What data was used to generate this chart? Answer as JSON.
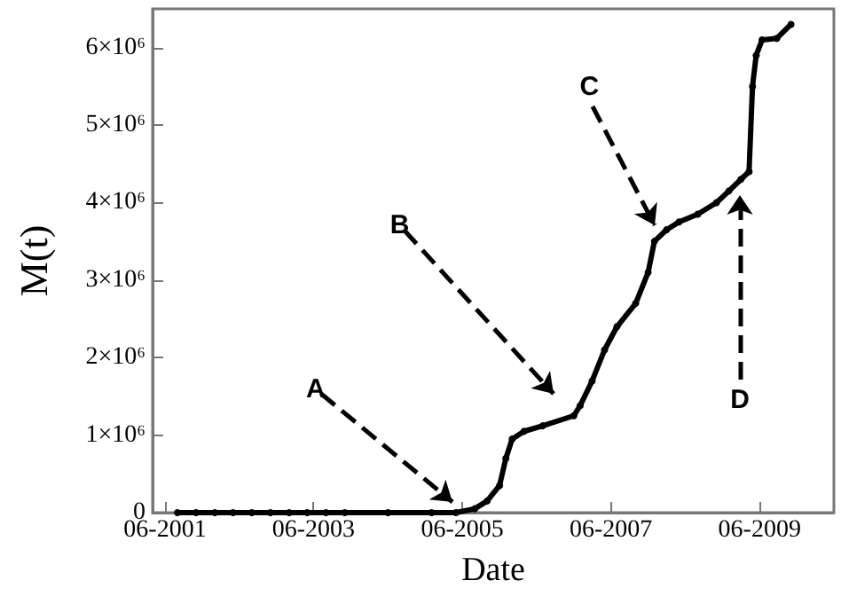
{
  "chart_data": {
    "type": "line",
    "xlabel": "Date",
    "ylabel": "M(t)",
    "x": [
      "2001-08",
      "2001-11",
      "2002-02",
      "2002-05",
      "2002-08",
      "2002-11",
      "2003-02",
      "2003-05",
      "2003-08",
      "2003-11",
      "2004-06",
      "2005-01",
      "2005-05",
      "2005-08",
      "2005-10",
      "2005-12",
      "2006-01",
      "2006-02",
      "2006-04",
      "2006-07",
      "2006-12",
      "2007-01",
      "2007-03",
      "2007-05",
      "2007-07",
      "2007-10",
      "2007-12",
      "2008-01",
      "2008-03",
      "2008-05",
      "2008-08",
      "2008-11",
      "2009-01",
      "2009-03",
      "2009-04-10",
      "2009-04-27",
      "2009-05-15",
      "2009-06-13",
      "2009-08-25",
      "2009-11-02"
    ],
    "series": [
      {
        "color": "#000000",
        "values": [
          0,
          0,
          0,
          0,
          0,
          0,
          0,
          0,
          0,
          0,
          0,
          0,
          0,
          50000,
          150000,
          350000,
          700000,
          950000,
          1050000,
          1120000,
          1250000,
          1380000,
          1700000,
          2100000,
          2400000,
          2700000,
          3100000,
          3500000,
          3650000,
          3750000,
          3850000,
          4000000,
          4150000,
          4300000,
          4400000,
          5500000,
          5900000,
          6100000,
          6120000,
          6300000
        ]
      }
    ],
    "xlim": [
      "2001-04",
      "2010-06"
    ],
    "xticks": [
      {
        "value": "2001-06",
        "label": "06-2001"
      },
      {
        "value": "2003-06",
        "label": "06-2003"
      },
      {
        "value": "2005-06",
        "label": "06-2005"
      },
      {
        "value": "2007-06",
        "label": "06-2007"
      },
      {
        "value": "2009-06",
        "label": "06-2009"
      }
    ],
    "ylim": [
      0,
      6500000
    ],
    "yticks": [
      0,
      {
        "value": 1000000,
        "label": "1×10⁶"
      },
      {
        "value": 2000000,
        "label": "2×10⁶"
      },
      {
        "value": 3000000,
        "label": "3×10⁶"
      },
      {
        "value": 4000000,
        "label": "4×10⁶"
      },
      {
        "value": 5000000,
        "label": "5×10⁶"
      },
      {
        "value": 6000000,
        "label": "6×10⁶"
      }
    ],
    "annotations": [
      {
        "text": "A",
        "x": "2005-05",
        "y": 0
      },
      "B",
      "C",
      "D"
    ],
    "marker": "circle",
    "grid": false
  }
}
